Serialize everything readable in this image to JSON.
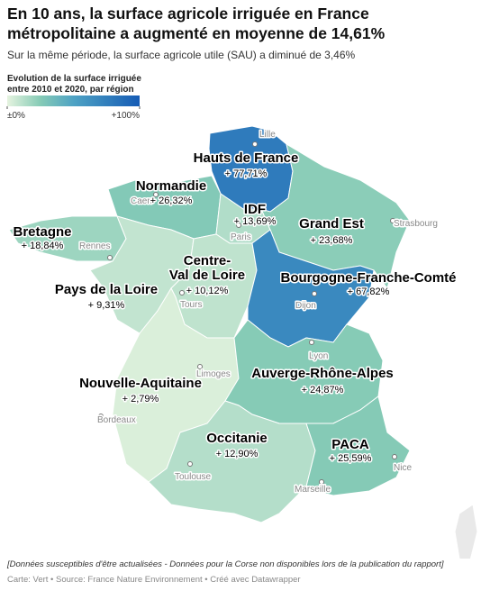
{
  "header": {
    "title": "En 10 ans, la surface agricole irriguée en France métropolitaine a augmenté en moyenne de 14,61%",
    "subtitle": "Sur la même période, la surface agricole utile (SAU) a diminué de 3,46%"
  },
  "legend": {
    "title": "Evolution de la surface irriguée entre 2010 et 2020, par région",
    "range": [
      0,
      100
    ],
    "ticks": [
      {
        "value": 0,
        "label": "±0%"
      },
      {
        "value": 100,
        "label": "+100%"
      }
    ]
  },
  "regions": [
    {
      "name": "Hauts de France",
      "value": 77.71,
      "value_label": "+ 77,71%"
    },
    {
      "name": "Normandie",
      "value": 26.32,
      "value_label": "+ 26,32%"
    },
    {
      "name": "IDF",
      "value": 13.69,
      "value_label": "+ 13,69%"
    },
    {
      "name": "Grand Est",
      "value": 23.68,
      "value_label": "+ 23,68%"
    },
    {
      "name": "Bretagne",
      "value": 18.84,
      "value_label": "+ 18,84%"
    },
    {
      "name": "Pays de la Loire",
      "value": 9.31,
      "value_label": "+ 9,31%"
    },
    {
      "name": [
        "Centre-",
        "Val de Loire"
      ],
      "value": 10.12,
      "value_label": "+ 10,12%"
    },
    {
      "name": "Bourgogne-Franche-Comté",
      "value": 67.82,
      "value_label": "+ 67,82%"
    },
    {
      "name": "Nouvelle-Aquitaine",
      "value": 2.79,
      "value_label": "+ 2,79%"
    },
    {
      "name": "Auverge-Rhône-Alpes",
      "value": 24.87,
      "value_label": "+ 24,87%"
    },
    {
      "name": "Occitanie",
      "value": 12.9,
      "value_label": "+ 12,90%"
    },
    {
      "name": "PACA",
      "value": 25.59,
      "value_label": "+ 25,59%"
    }
  ],
  "cities": [
    "Lille",
    "Caen",
    "Rennes",
    "Paris",
    "Strasbourg",
    "Dijon",
    "Tours",
    "Lyon",
    "Limoges",
    "Bordeaux",
    "Toulouse",
    "Marseille",
    "Nice"
  ],
  "footer": {
    "note": "[Données susceptibles d'être actualisées - Données pour la Corse non disponibles lors de la publication du rapport]",
    "credit": "Carte: Vert • Source: France Nature Environnement • Créé avec Datawrapper"
  }
}
